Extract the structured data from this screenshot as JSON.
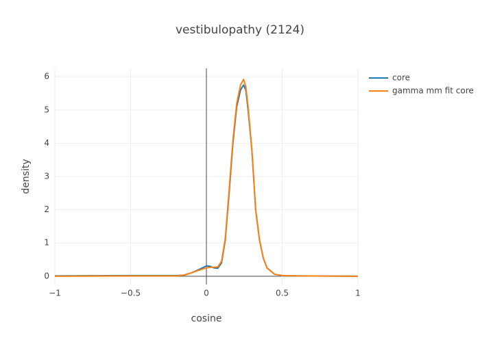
{
  "chart_data": {
    "type": "line",
    "title": "vestibulopathy (2124)",
    "x_label": "cosine",
    "y_label": "density",
    "x": [
      -1,
      -0.5,
      -0.2,
      -0.15,
      -0.1,
      -0.05,
      0,
      0.025,
      0.05,
      0.075,
      0.1,
      0.125,
      0.15,
      0.175,
      0.2,
      0.225,
      0.245,
      0.26,
      0.275,
      0.3,
      0.325,
      0.35,
      0.375,
      0.4,
      0.45,
      0.5,
      0.6,
      1
    ],
    "series": [
      {
        "name": "core",
        "color": "#1f77b4",
        "values": [
          0.01,
          0.02,
          0.02,
          0.03,
          0.1,
          0.2,
          0.31,
          0.3,
          0.25,
          0.24,
          0.4,
          1.1,
          2.5,
          4.0,
          5.1,
          5.6,
          5.75,
          5.6,
          5.0,
          3.8,
          2.0,
          1.1,
          0.55,
          0.25,
          0.06,
          0.02,
          0.01,
          0
        ]
      },
      {
        "name": "gamma mm fit core",
        "color": "#ff7f0e",
        "values": [
          0,
          0.01,
          0.01,
          0.03,
          0.1,
          0.18,
          0.25,
          0.27,
          0.27,
          0.28,
          0.45,
          1.15,
          2.6,
          4.1,
          5.2,
          5.75,
          5.92,
          5.7,
          5.1,
          3.8,
          2.0,
          1.1,
          0.55,
          0.25,
          0.06,
          0.02,
          0.01,
          0
        ]
      }
    ],
    "xlim": [
      -1,
      1
    ],
    "ylim": [
      -0.25,
      6.25
    ],
    "xticks": [
      {
        "value": -1,
        "label": "−1"
      },
      {
        "value": -0.5,
        "label": "−0.5"
      },
      0,
      0.5,
      1
    ],
    "yticks": [
      0,
      1,
      2,
      3,
      4,
      5,
      6
    ],
    "grid": true,
    "legend": "right"
  }
}
